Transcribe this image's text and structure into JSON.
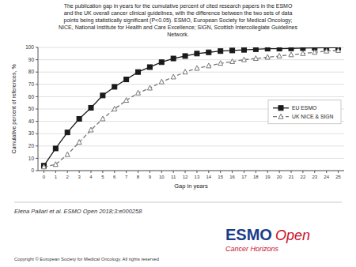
{
  "chart_data": {
    "type": "line",
    "title": [
      "The publication gap in years for the cumulative percent of cited research papers in the ESMO",
      "and the UK overall cancer clinical guidelines, with the difference between the two sets of data",
      "points being statistically significant (P<0.05). ESMO, European Society for Medical Oncology;",
      "NICE, National Institute for Health and Care Excellence; SIGN, Scottish Intercollegiate Guidelines",
      "Network."
    ],
    "x_label": "Gap in years",
    "y_label": "Cumulative percent of references, %",
    "x": [
      0,
      1,
      2,
      3,
      4,
      5,
      6,
      7,
      8,
      9,
      10,
      11,
      12,
      13,
      14,
      15,
      16,
      17,
      18,
      19,
      20,
      21,
      22,
      23,
      24,
      25
    ],
    "series": [
      {
        "name": "EU ESMO",
        "color": "#1a1a1a",
        "marker": "square",
        "line_style": "solid",
        "values": [
          4,
          18,
          31,
          42,
          51,
          61,
          68,
          74,
          80,
          84,
          88,
          91,
          93,
          95,
          96,
          97,
          97.5,
          98,
          98.5,
          99,
          99,
          99.2,
          99.4,
          99.6,
          99.7,
          99.8
        ]
      },
      {
        "name": "UK NICE & SIGN",
        "color": "#777777",
        "marker": "triangle",
        "line_style": "dashed",
        "values": [
          3,
          5,
          13,
          23,
          33,
          42,
          50,
          57,
          63,
          67,
          72,
          76,
          80,
          83,
          85,
          87,
          88.5,
          90,
          91,
          92,
          93,
          94,
          95,
          96,
          97,
          97.5
        ]
      }
    ],
    "xlim": [
      -0.5,
      25.5
    ],
    "xticks": [
      0,
      1,
      2,
      3,
      4,
      5,
      6,
      7,
      8,
      9,
      10,
      11,
      12,
      13,
      14,
      15,
      16,
      17,
      18,
      19,
      20,
      21,
      22,
      23,
      24,
      25
    ],
    "ylim": [
      0,
      100
    ],
    "yticks": [
      0,
      10,
      20,
      30,
      40,
      50,
      60,
      70,
      80,
      90,
      100
    ],
    "grid": true,
    "legend": "right",
    "annotations": [
      {
        "text": "Elena Pallari et al. ESMO Open 2018;3:e000258"
      },
      {
        "text": "Copyright © European Society for Medical Oncology. All rights reserved"
      },
      {
        "text": "ESMO",
        "color": "#1a3c8c"
      },
      {
        "text": "Open",
        "color": "#c8102e"
      },
      {
        "text": "Cancer Horizons",
        "color": "#c8102e"
      }
    ]
  }
}
